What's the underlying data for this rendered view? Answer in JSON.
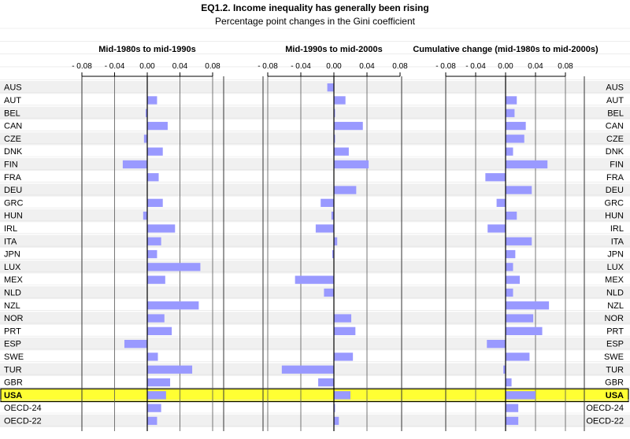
{
  "title": "EQ1.2. Income inequality has generally been rising",
  "subtitle": "Percentage point changes in the Gini coefficient",
  "highlight_color": "#ffff33",
  "bar_color": "#9999ff",
  "chart_data": {
    "type": "bar",
    "orientation": "horizontal",
    "categories": [
      "AUS",
      "AUT",
      "BEL",
      "CAN",
      "CZE",
      "DNK",
      "FIN",
      "FRA",
      "DEU",
      "GRC",
      "HUN",
      "IRL",
      "ITA",
      "JPN",
      "LUX",
      "MEX",
      "NLD",
      "NZL",
      "NOR",
      "PRT",
      "ESP",
      "SWE",
      "TUR",
      "GBR",
      "USA",
      "OECD-24",
      "OECD-22"
    ],
    "highlight_category": "USA",
    "xlim": [
      -0.08,
      0.08
    ],
    "ticks": [
      "- 0.08",
      "- 0.04",
      "0.00",
      "0.04",
      "0.08"
    ],
    "panels": [
      {
        "title": "Mid-1980s to mid-1990s",
        "values": [
          null,
          0.012,
          -0.002,
          0.025,
          -0.004,
          0.019,
          -0.03,
          0.014,
          null,
          0.019,
          -0.005,
          0.034,
          0.017,
          0.012,
          0.065,
          0.022,
          null,
          0.063,
          0.021,
          0.03,
          -0.028,
          0.013,
          0.055,
          0.028,
          0.023,
          0.017,
          0.012
        ]
      },
      {
        "title": "Mid-1990s to mid-2000s",
        "values": [
          -0.008,
          0.014,
          0.001,
          0.035,
          0.001,
          0.018,
          0.042,
          null,
          0.027,
          -0.016,
          -0.003,
          -0.022,
          0.004,
          -0.002,
          null,
          -0.047,
          -0.012,
          null,
          0.021,
          0.026,
          null,
          0.023,
          -0.063,
          -0.019,
          0.02,
          0.001,
          0.006
        ]
      },
      {
        "title": "Cumulative change (mid-1980s to mid-2000s)",
        "values": [
          null,
          0.015,
          0.012,
          0.027,
          0.025,
          0.01,
          0.056,
          -0.027,
          0.035,
          -0.012,
          0.015,
          -0.024,
          0.035,
          0.013,
          0.01,
          0.019,
          0.01,
          0.058,
          0.037,
          0.049,
          -0.025,
          0.032,
          -0.003,
          0.008,
          0.04,
          0.017,
          0.017
        ]
      }
    ]
  }
}
